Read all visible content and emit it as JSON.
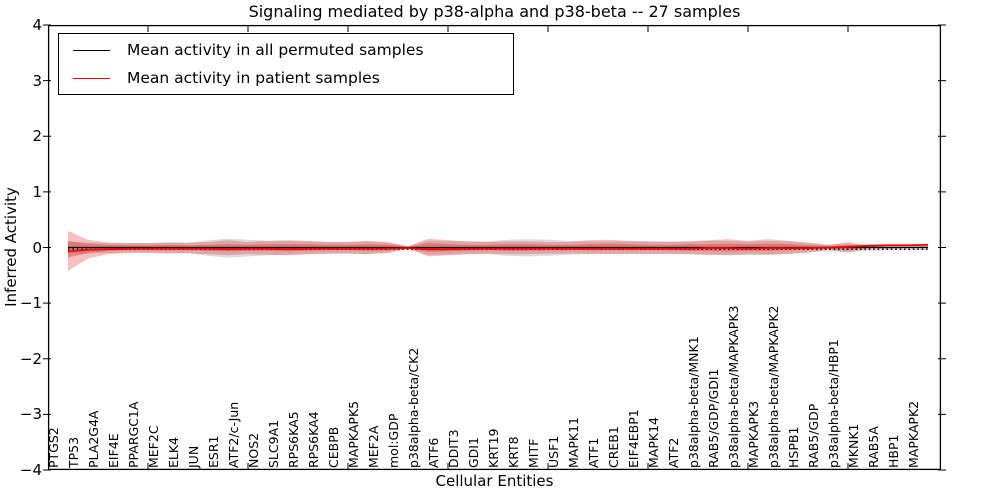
{
  "title": "Signaling mediated by p38-alpha and p38-beta -- 27 samples",
  "axes": {
    "xlabel": "Cellular Entities",
    "ylabel": "Inferred Activity",
    "ytick_labels": [
      "4",
      "3",
      "2",
      "1",
      "0",
      "−1",
      "−2",
      "−3",
      "−4"
    ],
    "ylim": [
      -4,
      4
    ]
  },
  "legend": {
    "items": [
      {
        "label": "Mean activity in all permuted samples",
        "color": "#000000"
      },
      {
        "label": "Mean activity in patient samples",
        "color": "#ee0000"
      }
    ]
  },
  "colors": {
    "frame": "#000000",
    "permuted_band": "#999999",
    "patient_band": "#dd3c3c",
    "permuted_line": "#000000",
    "patient_line": "#ee0000"
  },
  "chart_data": {
    "type": "line",
    "title": "Signaling mediated by p38-alpha and p38-beta -- 27 samples",
    "xlabel": "Cellular Entities",
    "ylabel": "Inferred Activity",
    "ylim": [
      -4,
      4
    ],
    "n_samples": 27,
    "legend_position": "upper left",
    "categories": [
      "PTGS2",
      "TP53",
      "PLA2G4A",
      "EIF4E",
      "PPARGC1A",
      "MEF2C",
      "ELK4",
      "JUN",
      "ESR1",
      "ATF2/c-Jun",
      "NOS2",
      "SLC9A1",
      "RPS6KA5",
      "RPS6KA4",
      "CEBPB",
      "MAPKAPK5",
      "MEF2A",
      "mol:GDP",
      "p38alpha-beta/CK2",
      "ATF6",
      "DDIT3",
      "GDI1",
      "KRT19",
      "KRT8",
      "MITF",
      "USF1",
      "MAPK11",
      "ATF1",
      "CREB1",
      "EIF4EBP1",
      "MAPK14",
      "ATF2",
      "p38alpha-beta/MNK1",
      "RAB5/GDP/GDI1",
      "p38alpha-beta/MAPKAPK3",
      "MAPKAPK3",
      "p38alpha-beta/MAPKAPK2",
      "HSPB1",
      "RAB5/GDP",
      "p38alpha-beta/HBP1",
      "MKNK1",
      "RAB5A",
      "HBP1",
      "MAPKAPK2"
    ],
    "series": [
      {
        "name": "Mean activity in all permuted samples",
        "color": "#000000",
        "style": "solid",
        "width": 1.2,
        "constant": 0.0
      },
      {
        "name": "zero reference (dotted)",
        "color": "#000000",
        "style": "dotted",
        "width": 1.3,
        "constant": -0.03
      },
      {
        "name": "Mean activity in patient samples",
        "color": "#ee0000",
        "style": "solid",
        "width": 1.8,
        "values": [
          -0.07,
          -0.04,
          -0.03,
          -0.02,
          -0.02,
          -0.02,
          -0.02,
          -0.02,
          -0.03,
          -0.02,
          -0.02,
          -0.03,
          -0.02,
          -0.02,
          -0.02,
          -0.02,
          -0.02,
          -0.01,
          -0.03,
          -0.03,
          -0.02,
          -0.02,
          -0.02,
          -0.02,
          -0.02,
          -0.02,
          -0.02,
          -0.02,
          -0.02,
          -0.02,
          -0.02,
          -0.02,
          -0.01,
          -0.01,
          -0.02,
          -0.01,
          -0.01,
          -0.01,
          0.0,
          0.01,
          0.03,
          0.04,
          0.04,
          0.05
        ]
      }
    ],
    "bands": [
      {
        "name": "permuted samples range",
        "color": "#999999",
        "opacity": 0.35,
        "upper": [
          0.1,
          0.09,
          0.08,
          0.08,
          0.08,
          0.09,
          0.09,
          0.13,
          0.16,
          0.14,
          0.12,
          0.12,
          0.11,
          0.1,
          0.1,
          0.11,
          0.08,
          0.03,
          0.12,
          0.12,
          0.11,
          0.11,
          0.14,
          0.15,
          0.14,
          0.12,
          0.11,
          0.11,
          0.11,
          0.11,
          0.11,
          0.11,
          0.12,
          0.12,
          0.11,
          0.12,
          0.11,
          0.08,
          0.06,
          0.07,
          0.06,
          0.05,
          0.05,
          0.05
        ],
        "lower": [
          -0.12,
          -0.11,
          -0.1,
          -0.09,
          -0.09,
          -0.1,
          -0.1,
          -0.15,
          -0.18,
          -0.16,
          -0.14,
          -0.13,
          -0.12,
          -0.11,
          -0.11,
          -0.12,
          -0.09,
          -0.03,
          -0.13,
          -0.13,
          -0.12,
          -0.12,
          -0.15,
          -0.16,
          -0.15,
          -0.13,
          -0.12,
          -0.12,
          -0.12,
          -0.12,
          -0.12,
          -0.12,
          -0.13,
          -0.13,
          -0.12,
          -0.13,
          -0.12,
          -0.09,
          -0.07,
          -0.08,
          -0.06,
          -0.05,
          -0.05,
          -0.05
        ]
      },
      {
        "name": "patient samples range (outer)",
        "color": "#dd3c3c",
        "opacity": 0.32,
        "upper": [
          0.3,
          0.14,
          0.09,
          0.08,
          0.08,
          0.09,
          0.08,
          0.1,
          0.13,
          0.1,
          0.12,
          0.13,
          0.12,
          0.1,
          0.1,
          0.12,
          0.1,
          0.02,
          0.16,
          0.13,
          0.11,
          0.1,
          0.11,
          0.11,
          0.1,
          0.1,
          0.13,
          0.14,
          0.12,
          0.11,
          0.1,
          0.11,
          0.13,
          0.15,
          0.12,
          0.15,
          0.12,
          0.09,
          0.04,
          0.1,
          0.03,
          0.02,
          0.02,
          0.03
        ],
        "lower": [
          -0.42,
          -0.2,
          -0.12,
          -0.1,
          -0.1,
          -0.11,
          -0.1,
          -0.12,
          -0.14,
          -0.12,
          -0.13,
          -0.14,
          -0.12,
          -0.11,
          -0.11,
          -0.12,
          -0.1,
          -0.02,
          -0.16,
          -0.14,
          -0.12,
          -0.11,
          -0.12,
          -0.12,
          -0.11,
          -0.11,
          -0.11,
          -0.11,
          -0.11,
          -0.11,
          -0.11,
          -0.12,
          -0.13,
          -0.14,
          -0.13,
          -0.13,
          -0.11,
          -0.09,
          -0.04,
          -0.09,
          -0.02,
          -0.02,
          -0.01,
          -0.01
        ]
      },
      {
        "name": "patient samples range (inner)",
        "color": "#dd3c3c",
        "opacity": 0.42,
        "upper": [
          0.12,
          0.07,
          0.05,
          0.04,
          0.04,
          0.05,
          0.04,
          0.05,
          0.06,
          0.05,
          0.06,
          0.06,
          0.06,
          0.05,
          0.05,
          0.06,
          0.05,
          0.01,
          0.08,
          0.06,
          0.05,
          0.05,
          0.06,
          0.06,
          0.05,
          0.05,
          0.06,
          0.07,
          0.06,
          0.05,
          0.05,
          0.06,
          0.06,
          0.07,
          0.06,
          0.07,
          0.06,
          0.04,
          0.02,
          0.05,
          0.015,
          0.01,
          0.01,
          0.015
        ],
        "lower": [
          -0.18,
          -0.1,
          -0.06,
          -0.05,
          -0.05,
          -0.05,
          -0.05,
          -0.06,
          -0.07,
          -0.06,
          -0.06,
          -0.07,
          -0.06,
          -0.05,
          -0.05,
          -0.06,
          -0.05,
          -0.01,
          -0.08,
          -0.07,
          -0.06,
          -0.05,
          -0.06,
          -0.06,
          -0.05,
          -0.05,
          -0.05,
          -0.05,
          -0.05,
          -0.05,
          -0.05,
          -0.06,
          -0.06,
          -0.07,
          -0.06,
          -0.06,
          -0.05,
          -0.04,
          -0.02,
          -0.04,
          -0.01,
          -0.01,
          -0.01,
          -0.01
        ]
      }
    ]
  }
}
